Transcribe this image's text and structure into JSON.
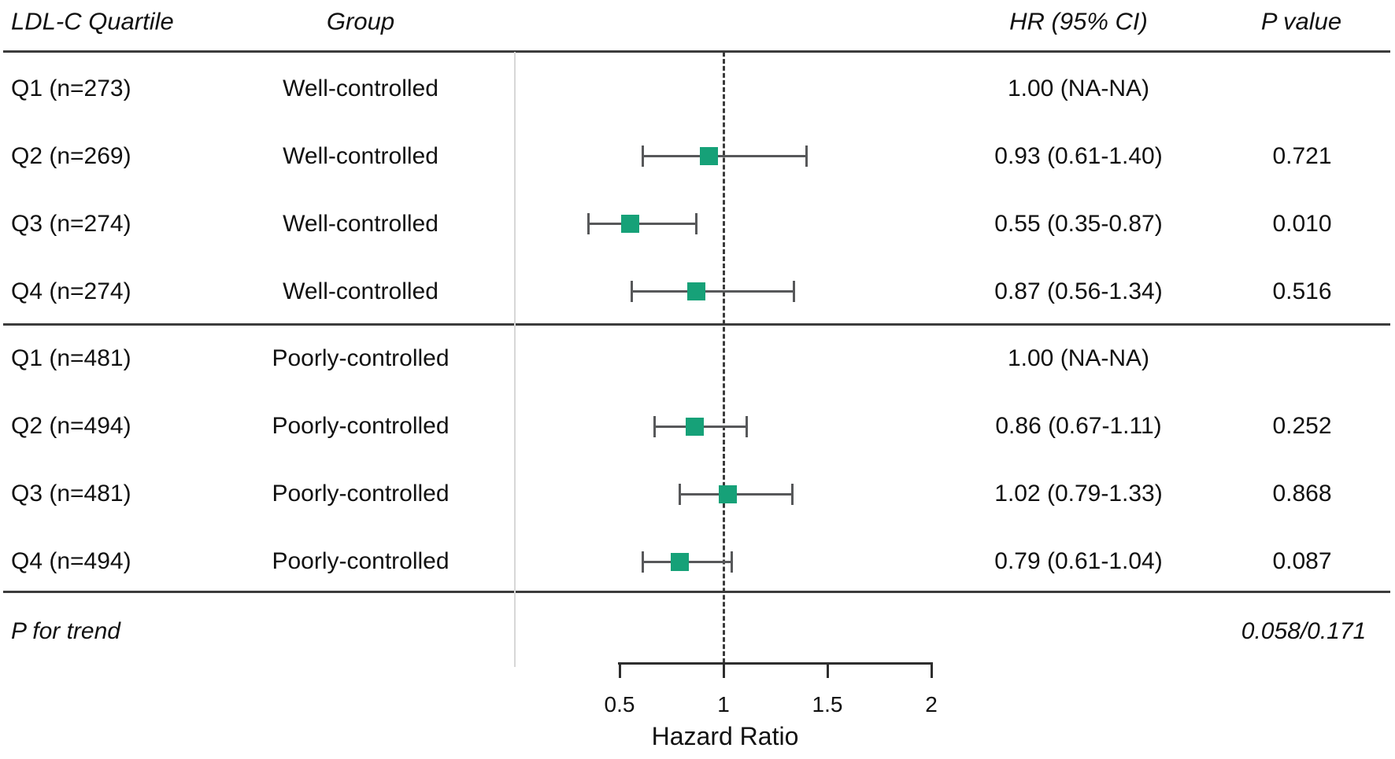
{
  "header": {
    "quartile": "LDL-C Quartile",
    "group": "Group",
    "hr": "HR (95% CI)",
    "p": "P value"
  },
  "footer": {
    "trend_label": "P for trend",
    "trend_value": "0.058/0.171"
  },
  "chart_data": {
    "type": "scatter",
    "subtype": "forest-plot",
    "xlabel": "Hazard Ratio",
    "x_axis": {
      "min": 0.5,
      "max": 2,
      "ticks": [
        0.5,
        1,
        1.5,
        2
      ],
      "tick_labels": [
        "0.5",
        "1",
        "1.5",
        "2"
      ],
      "reference_line_x": 1
    },
    "rows": [
      {
        "quartile": "Q1 (n=273)",
        "group": "Well-controlled",
        "hr_text": "1.00 (NA-NA)",
        "p_text": "",
        "hr": null,
        "ci": null
      },
      {
        "quartile": "Q2 (n=269)",
        "group": "Well-controlled",
        "hr_text": "0.93 (0.61-1.40)",
        "p_text": "0.721",
        "hr": 0.93,
        "ci": [
          0.61,
          1.4
        ]
      },
      {
        "quartile": "Q3 (n=274)",
        "group": "Well-controlled",
        "hr_text": "0.55 (0.35-0.87)",
        "p_text": "0.010",
        "hr": 0.55,
        "ci": [
          0.35,
          0.87
        ]
      },
      {
        "quartile": "Q4 (n=274)",
        "group": "Well-controlled",
        "hr_text": "0.87 (0.56-1.34)",
        "p_text": "0.516",
        "hr": 0.87,
        "ci": [
          0.56,
          1.34
        ]
      },
      {
        "quartile": "Q1 (n=481)",
        "group": "Poorly-controlled",
        "hr_text": "1.00 (NA-NA)",
        "p_text": "",
        "hr": null,
        "ci": null
      },
      {
        "quartile": "Q2 (n=494)",
        "group": "Poorly-controlled",
        "hr_text": "0.86 (0.67-1.11)",
        "p_text": "0.252",
        "hr": 0.86,
        "ci": [
          0.67,
          1.11
        ]
      },
      {
        "quartile": "Q3 (n=481)",
        "group": "Poorly-controlled",
        "hr_text": "1.02 (0.79-1.33)",
        "p_text": "0.868",
        "hr": 1.02,
        "ci": [
          0.79,
          1.33
        ]
      },
      {
        "quartile": "Q4 (n=494)",
        "group": "Poorly-controlled",
        "hr_text": "0.79 (0.61-1.04)",
        "p_text": "0.087",
        "hr": 0.79,
        "ci": [
          0.61,
          1.04
        ]
      }
    ],
    "p_for_trend": "0.058/0.171",
    "legend": "none",
    "grid": false
  },
  "colors": {
    "marker": "#16a178",
    "whisker": "#57585a",
    "rule": "#3c3c3c",
    "reference_dash": "#3a3a3a",
    "divider_gray": "#d7d7d7",
    "text": "#111111"
  }
}
